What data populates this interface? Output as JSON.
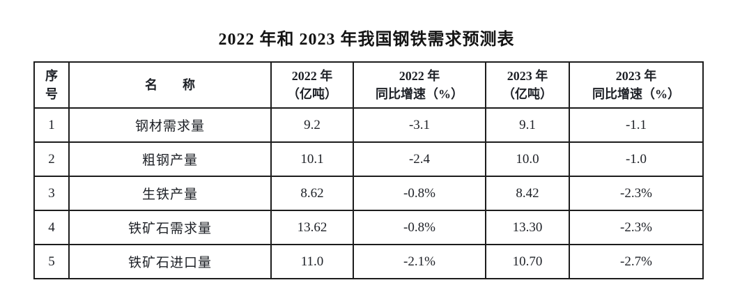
{
  "title": "2022 年和 2023 年我国钢铁需求预测表",
  "table": {
    "header": {
      "col1": {
        "line1": "序",
        "line2": "号"
      },
      "col2": {
        "line1": "名　　称"
      },
      "col3": {
        "line1": "2022 年",
        "line2": "（亿吨）"
      },
      "col4": {
        "line1": "2022 年",
        "line2": "同比增速（%）"
      },
      "col5": {
        "line1": "2023 年",
        "line2": "（亿吨）"
      },
      "col6": {
        "line1": "2023 年",
        "line2": "同比增速（%）"
      }
    },
    "rows": [
      {
        "no": "1",
        "name": "钢材需求量",
        "v2022": "9.2",
        "g2022": "-3.1",
        "v2023": "9.1",
        "g2023": "-1.1"
      },
      {
        "no": "2",
        "name": "粗钢产量",
        "v2022": "10.1",
        "g2022": "-2.4",
        "v2023": "10.0",
        "g2023": "-1.0"
      },
      {
        "no": "3",
        "name": "生铁产量",
        "v2022": "8.62",
        "g2022": "-0.8%",
        "v2023": "8.42",
        "g2023": "-2.3%"
      },
      {
        "no": "4",
        "name": "铁矿石需求量",
        "v2022": "13.62",
        "g2022": "-0.8%",
        "v2023": "13.30",
        "g2023": "-2.3%"
      },
      {
        "no": "5",
        "name": "铁矿石进口量",
        "v2022": "11.0",
        "g2022": "-2.1%",
        "v2023": "10.70",
        "g2023": "-2.7%"
      }
    ]
  },
  "colors": {
    "text": "#1d2026",
    "border": "#1c1c1c",
    "background": "#ffffff"
  }
}
